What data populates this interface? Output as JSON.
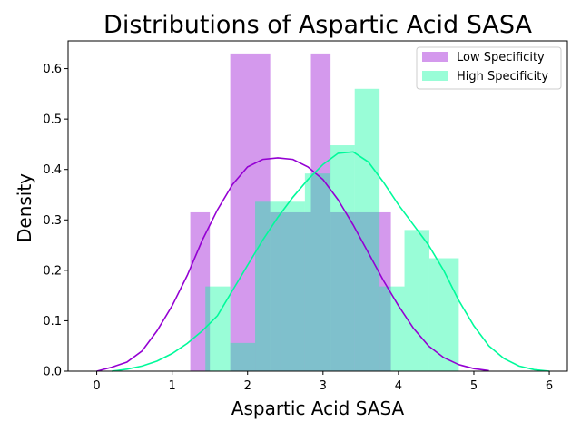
{
  "chart_data": {
    "type": "histogram_kde",
    "title": "Distributions of Aspartic Acid SASA",
    "xlabel": "Aspartic Acid SASA",
    "ylabel": "Density",
    "xlim": [
      -0.38,
      6.24
    ],
    "ylim": [
      0,
      0.655
    ],
    "xticks": [
      0,
      1,
      2,
      3,
      4,
      5,
      6
    ],
    "yticks": [
      0.0,
      0.1,
      0.2,
      0.3,
      0.4,
      0.5,
      0.6
    ],
    "ytick_labels": [
      "0.0",
      "0.1",
      "0.2",
      "0.3",
      "0.4",
      "0.5",
      "0.6"
    ],
    "legend_position": "upper-right",
    "series": [
      {
        "name": "Low Specificity",
        "color": "#9400D3",
        "bars": [
          {
            "x0": 1.24,
            "x1": 1.5,
            "y": 0.315
          },
          {
            "x0": 1.5,
            "x1": 1.77,
            "y": 0.0
          },
          {
            "x0": 1.77,
            "x1": 2.3,
            "y": 0.63
          },
          {
            "x0": 2.3,
            "x1": 2.84,
            "y": 0.315
          },
          {
            "x0": 2.84,
            "x1": 3.1,
            "y": 0.63
          },
          {
            "x0": 3.1,
            "x1": 3.9,
            "y": 0.315
          }
        ],
        "kde": [
          [
            0.0,
            0.0
          ],
          [
            0.2,
            0.008
          ],
          [
            0.4,
            0.018
          ],
          [
            0.6,
            0.04
          ],
          [
            0.8,
            0.08
          ],
          [
            1.0,
            0.13
          ],
          [
            1.2,
            0.19
          ],
          [
            1.4,
            0.26
          ],
          [
            1.6,
            0.32
          ],
          [
            1.8,
            0.37
          ],
          [
            2.0,
            0.405
          ],
          [
            2.2,
            0.42
          ],
          [
            2.4,
            0.423
          ],
          [
            2.6,
            0.42
          ],
          [
            2.8,
            0.405
          ],
          [
            3.0,
            0.38
          ],
          [
            3.2,
            0.34
          ],
          [
            3.4,
            0.29
          ],
          [
            3.6,
            0.235
          ],
          [
            3.8,
            0.18
          ],
          [
            4.0,
            0.13
          ],
          [
            4.2,
            0.085
          ],
          [
            4.4,
            0.05
          ],
          [
            4.6,
            0.027
          ],
          [
            4.8,
            0.013
          ],
          [
            5.0,
            0.005
          ],
          [
            5.2,
            0.001
          ]
        ]
      },
      {
        "name": "High Specificity",
        "color": "#00FA9A",
        "bars": [
          {
            "x0": 1.44,
            "x1": 1.77,
            "y": 0.168
          },
          {
            "x0": 1.77,
            "x1": 2.1,
            "y": 0.056
          },
          {
            "x0": 2.1,
            "x1": 2.43,
            "y": 0.336
          },
          {
            "x0": 2.43,
            "x1": 2.76,
            "y": 0.336
          },
          {
            "x0": 2.76,
            "x1": 3.09,
            "y": 0.392
          },
          {
            "x0": 3.09,
            "x1": 3.42,
            "y": 0.448
          },
          {
            "x0": 3.42,
            "x1": 3.75,
            "y": 0.56
          },
          {
            "x0": 3.75,
            "x1": 4.08,
            "y": 0.168
          },
          {
            "x0": 4.08,
            "x1": 4.41,
            "y": 0.28
          },
          {
            "x0": 4.41,
            "x1": 4.8,
            "y": 0.224
          }
        ],
        "kde": [
          [
            0.2,
            0.0
          ],
          [
            0.4,
            0.004
          ],
          [
            0.6,
            0.01
          ],
          [
            0.8,
            0.02
          ],
          [
            1.0,
            0.035
          ],
          [
            1.2,
            0.055
          ],
          [
            1.4,
            0.08
          ],
          [
            1.6,
            0.11
          ],
          [
            1.8,
            0.16
          ],
          [
            2.0,
            0.21
          ],
          [
            2.2,
            0.26
          ],
          [
            2.4,
            0.305
          ],
          [
            2.6,
            0.345
          ],
          [
            2.8,
            0.38
          ],
          [
            3.0,
            0.41
          ],
          [
            3.2,
            0.432
          ],
          [
            3.4,
            0.435
          ],
          [
            3.6,
            0.415
          ],
          [
            3.8,
            0.375
          ],
          [
            4.0,
            0.33
          ],
          [
            4.2,
            0.29
          ],
          [
            4.4,
            0.25
          ],
          [
            4.6,
            0.2
          ],
          [
            4.8,
            0.14
          ],
          [
            5.0,
            0.09
          ],
          [
            5.2,
            0.05
          ],
          [
            5.4,
            0.025
          ],
          [
            5.6,
            0.01
          ],
          [
            5.8,
            0.003
          ],
          [
            6.0,
            0.0
          ]
        ]
      }
    ]
  }
}
